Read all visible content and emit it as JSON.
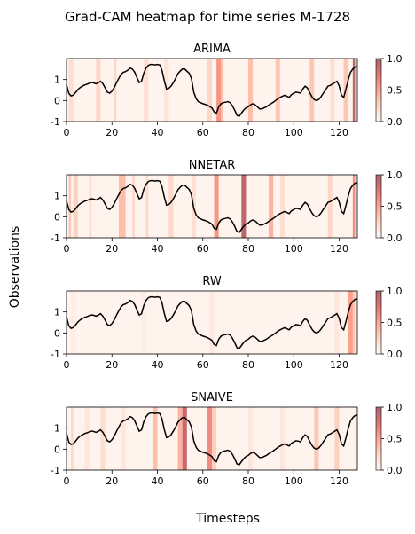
{
  "figure": {
    "title": "Grad-CAM heatmap for time series M-1728",
    "xlabel": "Timesteps",
    "ylabel": "Observations"
  },
  "series_values": [
    0.76,
    0.34,
    0.22,
    0.26,
    0.38,
    0.52,
    0.62,
    0.68,
    0.74,
    0.78,
    0.82,
    0.86,
    0.84,
    0.8,
    0.85,
    0.92,
    0.8,
    0.6,
    0.4,
    0.35,
    0.45,
    0.62,
    0.85,
    1.05,
    1.25,
    1.35,
    1.38,
    1.45,
    1.55,
    1.5,
    1.35,
    1.1,
    0.85,
    0.92,
    1.3,
    1.55,
    1.68,
    1.72,
    1.72,
    1.7,
    1.72,
    1.7,
    1.45,
    0.95,
    0.55,
    0.58,
    0.68,
    0.85,
    1.05,
    1.28,
    1.4,
    1.5,
    1.5,
    1.4,
    1.3,
    1.05,
    0.4,
    0.1,
    -0.05,
    -0.1,
    -0.15,
    -0.18,
    -0.22,
    -0.28,
    -0.35,
    -0.55,
    -0.6,
    -0.3,
    -0.15,
    -0.1,
    -0.08,
    -0.05,
    -0.1,
    -0.25,
    -0.45,
    -0.7,
    -0.75,
    -0.6,
    -0.45,
    -0.35,
    -0.3,
    -0.2,
    -0.15,
    -0.2,
    -0.3,
    -0.4,
    -0.4,
    -0.35,
    -0.3,
    -0.22,
    -0.15,
    -0.08,
    0.0,
    0.08,
    0.15,
    0.2,
    0.25,
    0.2,
    0.15,
    0.28,
    0.35,
    0.4,
    0.38,
    0.35,
    0.55,
    0.68,
    0.6,
    0.38,
    0.18,
    0.05,
    0.0,
    0.05,
    0.18,
    0.35,
    0.5,
    0.68,
    0.72,
    0.78,
    0.85,
    0.92,
    0.7,
    0.25,
    0.15,
    0.55,
    1.0,
    1.35,
    1.5,
    1.6,
    1.62
  ],
  "chart_data": [
    {
      "type": "heatmap",
      "title": "ARIMA",
      "x_range": [
        0,
        128
      ],
      "y_range": [
        -1,
        2
      ],
      "xticks": [
        0,
        20,
        40,
        60,
        80,
        100,
        120
      ],
      "yticks": [
        -1,
        0,
        1
      ],
      "colorbar_ticks": [
        0.0,
        0.5,
        1.0
      ],
      "colormap": "Reds",
      "line_color": "#000000",
      "heat_spans": [
        {
          "x": [
            1,
            3
          ],
          "v": 0.15
        },
        {
          "x": [
            13,
            15
          ],
          "v": 0.2
        },
        {
          "x": [
            21,
            22
          ],
          "v": 0.2
        },
        {
          "x": [
            34,
            36
          ],
          "v": 0.15
        },
        {
          "x": [
            43,
            45
          ],
          "v": 0.12
        },
        {
          "x": [
            62,
            64
          ],
          "v": 0.2
        },
        {
          "x": [
            66,
            68
          ],
          "v": 0.55
        },
        {
          "x": [
            68,
            69
          ],
          "v": 0.35
        },
        {
          "x": [
            80,
            82
          ],
          "v": 0.35
        },
        {
          "x": [
            92,
            94
          ],
          "v": 0.3
        },
        {
          "x": [
            107,
            109
          ],
          "v": 0.3
        },
        {
          "x": [
            116,
            118
          ],
          "v": 0.15
        },
        {
          "x": [
            122,
            124
          ],
          "v": 0.3
        },
        {
          "x": [
            126,
            127
          ],
          "v": 0.9
        }
      ]
    },
    {
      "type": "heatmap",
      "title": "NNETAR",
      "x_range": [
        0,
        128
      ],
      "y_range": [
        -1,
        2
      ],
      "xticks": [
        0,
        20,
        40,
        60,
        80,
        100,
        120
      ],
      "yticks": [
        -1,
        0,
        1
      ],
      "colorbar_ticks": [
        0.0,
        0.5,
        1.0
      ],
      "colormap": "Reds",
      "line_color": "#000000",
      "heat_spans": [
        {
          "x": [
            1,
            2
          ],
          "v": 0.3
        },
        {
          "x": [
            3,
            5
          ],
          "v": 0.25
        },
        {
          "x": [
            10,
            11
          ],
          "v": 0.2
        },
        {
          "x": [
            23,
            26
          ],
          "v": 0.35
        },
        {
          "x": [
            29,
            30
          ],
          "v": 0.2
        },
        {
          "x": [
            35,
            36
          ],
          "v": 0.2
        },
        {
          "x": [
            45,
            47
          ],
          "v": 0.2
        },
        {
          "x": [
            55,
            57
          ],
          "v": 0.15
        },
        {
          "x": [
            65,
            67
          ],
          "v": 0.55
        },
        {
          "x": [
            77,
            79
          ],
          "v": 0.9
        },
        {
          "x": [
            89,
            91
          ],
          "v": 0.4
        },
        {
          "x": [
            94,
            96
          ],
          "v": 0.15
        },
        {
          "x": [
            115,
            117
          ],
          "v": 0.2
        },
        {
          "x": [
            126,
            127
          ],
          "v": 0.6
        }
      ]
    },
    {
      "type": "heatmap",
      "title": "RW",
      "x_range": [
        0,
        128
      ],
      "y_range": [
        -1,
        2
      ],
      "xticks": [
        0,
        20,
        40,
        60,
        80,
        100,
        120
      ],
      "yticks": [
        -1,
        0,
        1
      ],
      "colorbar_ticks": [
        0.0,
        0.5,
        1.0
      ],
      "colormap": "Reds",
      "line_color": "#000000",
      "heat_spans": [
        {
          "x": [
            2,
            4
          ],
          "v": 0.05
        },
        {
          "x": [
            33,
            35
          ],
          "v": 0.05
        },
        {
          "x": [
            63,
            65
          ],
          "v": 0.08
        },
        {
          "x": [
            118,
            120
          ],
          "v": 0.1
        },
        {
          "x": [
            124,
            126
          ],
          "v": 0.5
        },
        {
          "x": [
            126,
            127
          ],
          "v": 0.3
        }
      ]
    },
    {
      "type": "heatmap",
      "title": "SNAIVE",
      "x_range": [
        0,
        128
      ],
      "y_range": [
        -1,
        2
      ],
      "xticks": [
        0,
        20,
        40,
        60,
        80,
        100,
        120
      ],
      "yticks": [
        -1,
        0,
        1
      ],
      "colorbar_ticks": [
        0.0,
        0.5,
        1.0
      ],
      "colormap": "Reds",
      "line_color": "#000000",
      "heat_spans": [
        {
          "x": [
            2,
            3
          ],
          "v": 0.2
        },
        {
          "x": [
            8,
            10
          ],
          "v": 0.1
        },
        {
          "x": [
            15,
            17
          ],
          "v": 0.15
        },
        {
          "x": [
            24,
            26
          ],
          "v": 0.1
        },
        {
          "x": [
            38,
            40
          ],
          "v": 0.35
        },
        {
          "x": [
            49,
            51
          ],
          "v": 0.4
        },
        {
          "x": [
            51,
            53
          ],
          "v": 0.85
        },
        {
          "x": [
            62,
            64
          ],
          "v": 0.6
        },
        {
          "x": [
            64,
            66
          ],
          "v": 0.25
        },
        {
          "x": [
            80,
            82
          ],
          "v": 0.1
        },
        {
          "x": [
            94,
            96
          ],
          "v": 0.1
        },
        {
          "x": [
            109,
            111
          ],
          "v": 0.3
        },
        {
          "x": [
            118,
            120
          ],
          "v": 0.25
        }
      ]
    }
  ]
}
